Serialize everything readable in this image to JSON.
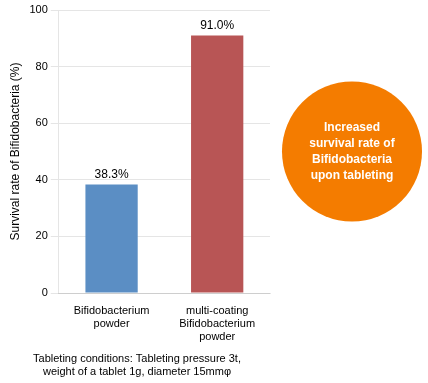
{
  "chart_data": {
    "type": "bar",
    "categories": [
      "Bifidobacterium\npowder",
      "multi-coating\nBifidobacterium\npowder"
    ],
    "values": [
      38.3,
      91.0
    ],
    "value_labels": [
      "38.3%",
      "91.0%"
    ],
    "data_labels": true,
    "colors": [
      "#5b8ec4",
      "#b85555"
    ],
    "ylim": [
      0,
      100
    ],
    "yticks": [
      0,
      20,
      40,
      60,
      80,
      100
    ],
    "grid": true,
    "ylabel": "Survival rate of Bifidobacteria (%)",
    "annotations": [
      {
        "text": [
          "Increased",
          "survival rate of",
          "Bifidobacteria",
          "upon tableting"
        ],
        "color": "#f47c00"
      }
    ],
    "footnote": [
      "Tableting conditions: Tableting pressure 3t,",
      "weight of a tablet 1g, diameter 15mmφ"
    ]
  }
}
